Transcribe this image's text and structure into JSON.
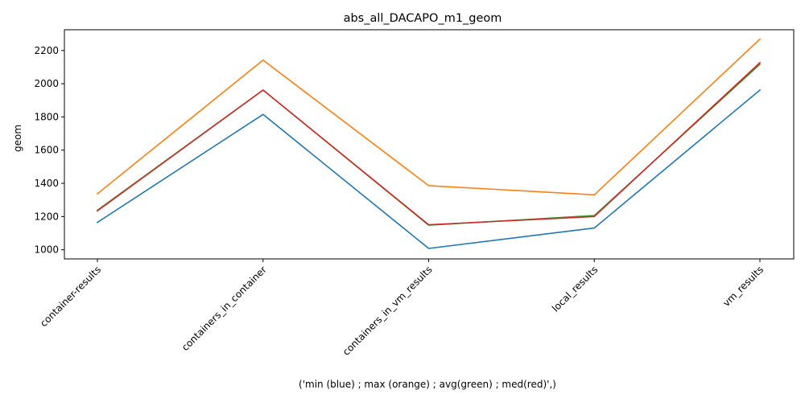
{
  "chart_data": {
    "type": "line",
    "title": "abs_all_DACAPO_m1_geom",
    "xlabel": "('min (blue) ; max (orange) ; avg(green) ; med(red)',)",
    "ylabel": "geom",
    "categories": [
      "container-results",
      "containers_in_container",
      "containers_in_vm_results",
      "local_results",
      "vm_results"
    ],
    "yticks": [
      1000,
      1200,
      1400,
      1600,
      1800,
      2000,
      2200
    ],
    "ylim": [
      945,
      2325
    ],
    "grid": false,
    "legend": "none",
    "series": [
      {
        "color": "#1f77b4",
        "values": [
          1165,
          1815,
          1008,
          1131,
          1962
        ]
      },
      {
        "color": "#ff7f0e",
        "values": [
          1337,
          2142,
          1386,
          1331,
          2269
        ]
      },
      {
        "color": "#2ca02c",
        "values": [
          1238,
          1962,
          1148,
          1206,
          2117
        ]
      },
      {
        "color": "#d62728",
        "values": [
          1234,
          1962,
          1151,
          1200,
          2127
        ]
      }
    ]
  }
}
